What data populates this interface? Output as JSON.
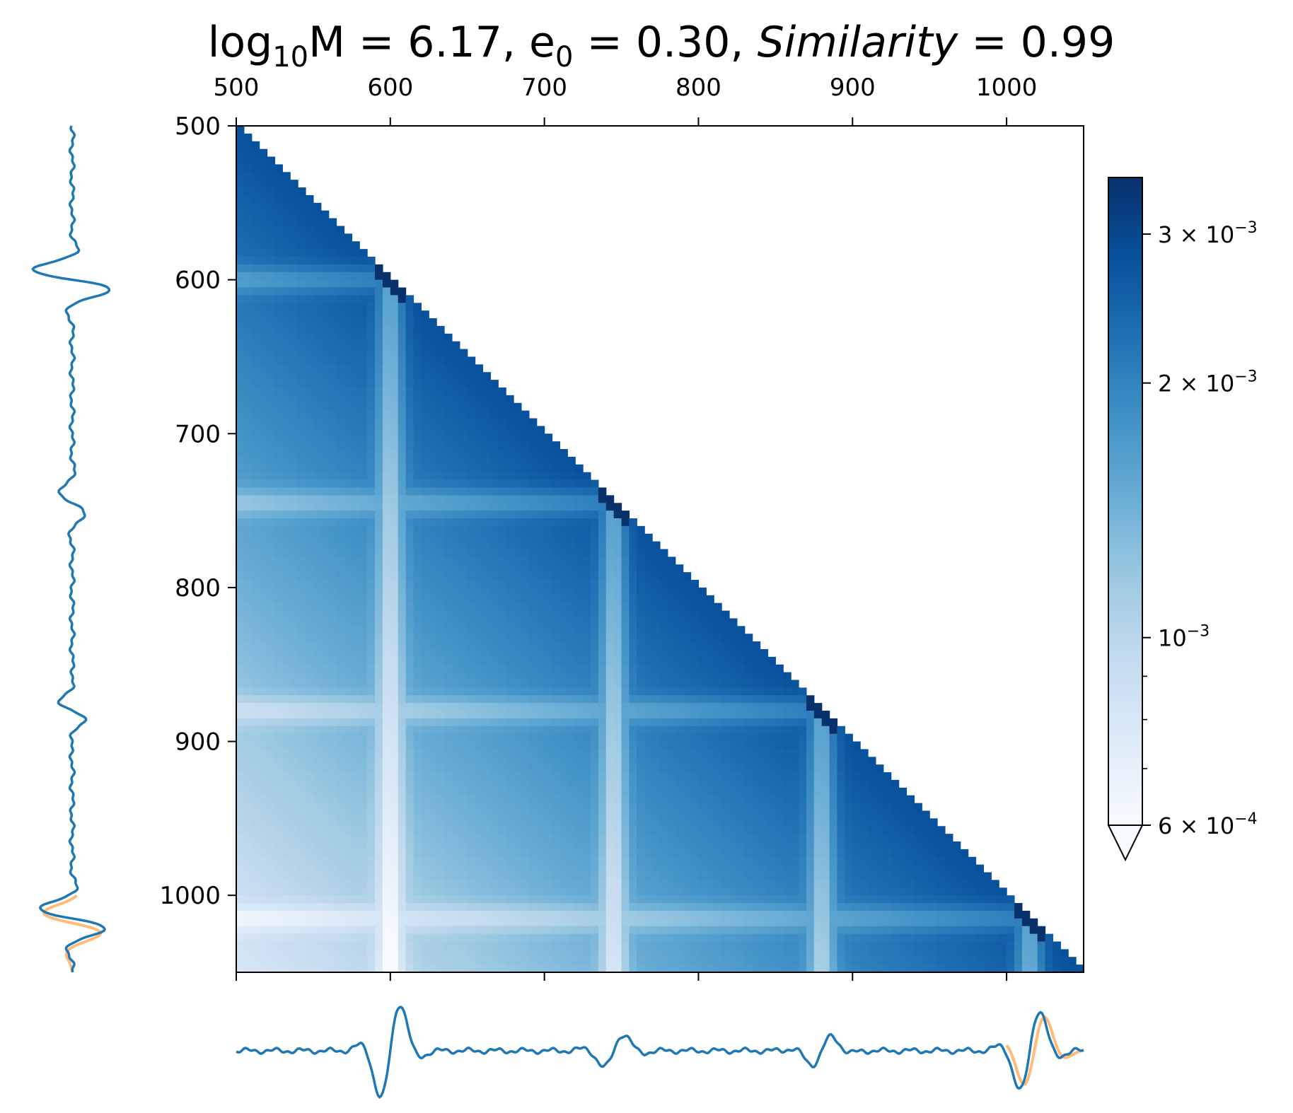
{
  "title": {
    "prefix": "log",
    "sub": "10",
    "part1": "M = 6.17, e",
    "sub2": "0",
    "part2": " = 0.30, ",
    "italic": "Similarity",
    "part3": " = 0.99"
  },
  "chart_data": {
    "type": "heatmap",
    "x_range": [
      500,
      1050
    ],
    "y_range": [
      500,
      1050
    ],
    "x_ticks": [
      500,
      600,
      700,
      800,
      900,
      1000
    ],
    "y_ticks": [
      500,
      600,
      700,
      800,
      900,
      1000
    ],
    "x_tick_labels": [
      "500",
      "600",
      "700",
      "800",
      "900",
      "1000"
    ],
    "y_tick_labels": [
      "500",
      "600",
      "700",
      "800",
      "900",
      "1000"
    ],
    "matrix": "lower-triangular",
    "colormap": "Blues",
    "scale": "log",
    "colorbar": {
      "vmin": 0.0006,
      "vmax": 0.0035,
      "extend": "min",
      "ticks": [
        {
          "value": 0.0006,
          "mantissa": "6",
          "exp": "−4"
        },
        {
          "value": 0.001,
          "mantissa": "",
          "exp": "−3"
        },
        {
          "value": 0.002,
          "mantissa": "2",
          "exp": "−3"
        },
        {
          "value": 0.003,
          "mantissa": "3",
          "exp": "−3"
        }
      ],
      "minor_ticks": [
        0.0007,
        0.0008,
        0.0009
      ]
    },
    "value_model": {
      "near_diagonal": 0.0028,
      "far_from_diagonal": 0.0008,
      "event_times": [
        600,
        745,
        880,
        1015
      ],
      "event_dip_factor": 0.55
    },
    "marginal_signal": {
      "color": "#1f77b4",
      "template_color": "#ffbb78",
      "events": [
        {
          "t": 600,
          "amp": 1.0
        },
        {
          "t": 745,
          "amp": 0.35
        },
        {
          "t": 880,
          "amp": 0.3
        },
        {
          "t": 1015,
          "amp": 0.85
        }
      ],
      "template_range": [
        1000,
        1050
      ]
    },
    "colors": {
      "axes": "#000000",
      "cmap_stops": [
        "#f7fbff",
        "#deebf7",
        "#c6dbef",
        "#9ecae1",
        "#6baed6",
        "#4292c6",
        "#2171b5",
        "#08519c",
        "#08306b"
      ]
    }
  }
}
